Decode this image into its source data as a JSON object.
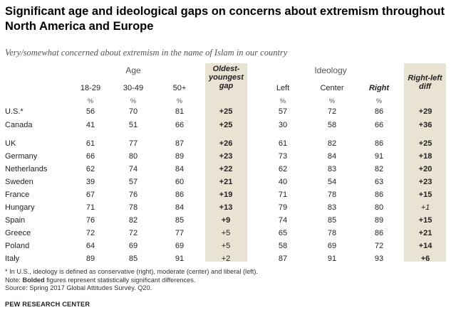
{
  "title": "Significant age and ideological gaps on concerns about extremism throughout North America and Europe",
  "subtitle": "Very/somewhat concerned about extremism in the name of Islam in our country",
  "headers": {
    "age_group": "Age",
    "ideology_group": "Ideology",
    "columns": [
      "18-29",
      "30-49",
      "50+",
      "Oldest-youngest gap",
      "Left",
      "Center",
      "Right",
      "Right-left diff"
    ],
    "gap_lines": [
      "Oldest-",
      "youngest",
      "gap"
    ],
    "diff_lines": [
      "Right-left",
      "diff"
    ],
    "percent_mark": "%"
  },
  "rows": [
    {
      "country": "U.S.*",
      "values": [
        "56",
        "70",
        "81",
        "+25",
        "57",
        "72",
        "86",
        "+29"
      ],
      "gap_bold": true,
      "diff_bold": true
    },
    {
      "country": "Canada",
      "values": [
        "41",
        "51",
        "66",
        "+25",
        "30",
        "58",
        "66",
        "+36"
      ],
      "gap_bold": true,
      "diff_bold": true
    },
    {
      "country": "UK",
      "values": [
        "61",
        "77",
        "87",
        "+26",
        "61",
        "82",
        "86",
        "+25"
      ],
      "gap_bold": true,
      "diff_bold": true
    },
    {
      "country": "Germany",
      "values": [
        "66",
        "80",
        "89",
        "+23",
        "73",
        "84",
        "91",
        "+18"
      ],
      "gap_bold": true,
      "diff_bold": true
    },
    {
      "country": "Netherlands",
      "values": [
        "62",
        "74",
        "84",
        "+22",
        "62",
        "83",
        "82",
        "+20"
      ],
      "gap_bold": true,
      "diff_bold": true
    },
    {
      "country": "Sweden",
      "values": [
        "39",
        "57",
        "60",
        "+21",
        "40",
        "54",
        "63",
        "+23"
      ],
      "gap_bold": true,
      "diff_bold": true
    },
    {
      "country": "France",
      "values": [
        "67",
        "76",
        "86",
        "+19",
        "71",
        "78",
        "86",
        "+15"
      ],
      "gap_bold": true,
      "diff_bold": true
    },
    {
      "country": "Hungary",
      "values": [
        "71",
        "78",
        "84",
        "+13",
        "79",
        "83",
        "80",
        "+1"
      ],
      "gap_bold": true,
      "diff_bold": false
    },
    {
      "country": "Spain",
      "values": [
        "76",
        "82",
        "85",
        "+9",
        "74",
        "85",
        "89",
        "+15"
      ],
      "gap_bold": true,
      "diff_bold": true
    },
    {
      "country": "Greece",
      "values": [
        "72",
        "72",
        "77",
        "+5",
        "65",
        "78",
        "86",
        "+21"
      ],
      "gap_bold": false,
      "diff_bold": true
    },
    {
      "country": "Poland",
      "values": [
        "64",
        "69",
        "69",
        "+5",
        "58",
        "69",
        "72",
        "+14"
      ],
      "gap_bold": false,
      "diff_bold": true
    },
    {
      "country": "Italy",
      "values": [
        "89",
        "85",
        "91",
        "+2",
        "87",
        "91",
        "93",
        "+6"
      ],
      "gap_bold": false,
      "diff_bold": true
    }
  ],
  "notes": {
    "line1": "* In U.S., ideology is defined as conservative (right), moderate (center) and liberal (left).",
    "line2_prefix": "Note: ",
    "line2_bold": "Bolded",
    "line2_suffix": " figures represent statistically significant differences.",
    "line3": "Source: Spring 2017 Global Attitudes Survey. Q20."
  },
  "source_org": "PEW RESEARCH CENTER",
  "colors": {
    "shade": "#e8e3d3",
    "text": "#231f20"
  },
  "chart_data": {
    "type": "table",
    "title": "Significant age and ideological gaps on concerns about extremism throughout North America and Europe",
    "subtitle": "Very/somewhat concerned about extremism in the name of Islam in our country",
    "columns": [
      "18-29",
      "30-49",
      "50+",
      "Oldest-youngest gap",
      "Left",
      "Center",
      "Right",
      "Right-left diff"
    ],
    "rows": [
      "U.S.*",
      "Canada",
      "UK",
      "Germany",
      "Netherlands",
      "Sweden",
      "France",
      "Hungary",
      "Spain",
      "Greece",
      "Poland",
      "Italy"
    ],
    "values": [
      [
        56,
        70,
        81,
        25,
        57,
        72,
        86,
        29
      ],
      [
        41,
        51,
        66,
        25,
        30,
        58,
        66,
        36
      ],
      [
        61,
        77,
        87,
        26,
        61,
        82,
        86,
        25
      ],
      [
        66,
        80,
        89,
        23,
        73,
        84,
        91,
        18
      ],
      [
        62,
        74,
        84,
        22,
        62,
        83,
        82,
        20
      ],
      [
        39,
        57,
        60,
        21,
        40,
        54,
        63,
        23
      ],
      [
        67,
        76,
        86,
        19,
        71,
        78,
        86,
        15
      ],
      [
        71,
        78,
        84,
        13,
        79,
        83,
        80,
        1
      ],
      [
        76,
        82,
        85,
        9,
        74,
        85,
        89,
        15
      ],
      [
        72,
        72,
        77,
        5,
        65,
        78,
        86,
        21
      ],
      [
        64,
        69,
        69,
        5,
        58,
        69,
        72,
        14
      ],
      [
        89,
        85,
        91,
        2,
        87,
        91,
        93,
        6
      ]
    ]
  }
}
